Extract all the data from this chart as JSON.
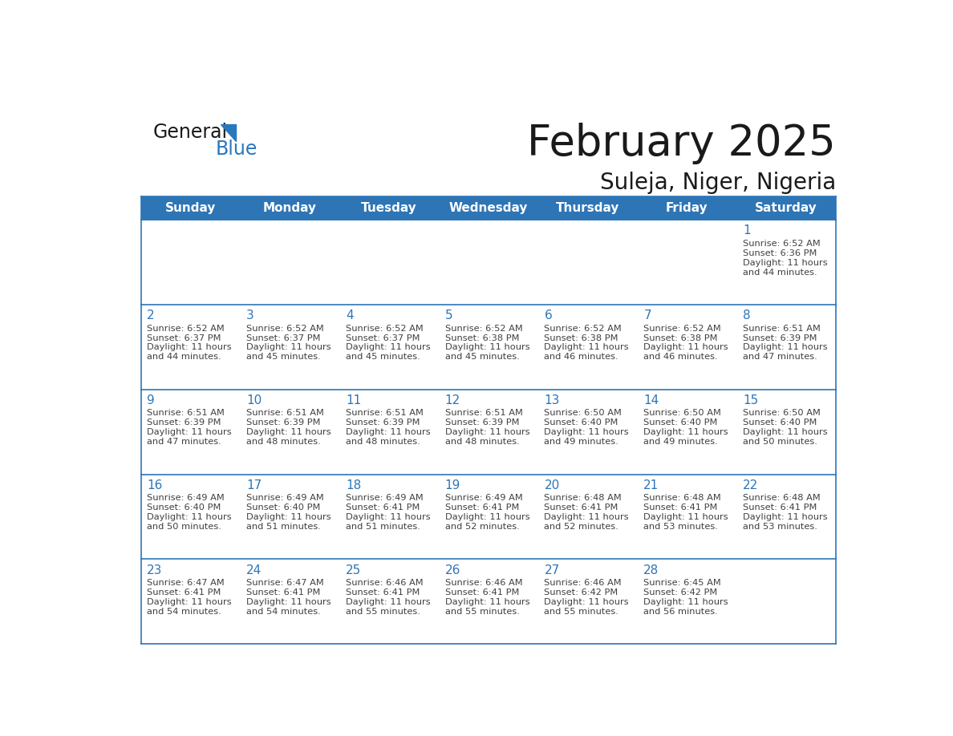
{
  "title": "February 2025",
  "subtitle": "Suleja, Niger, Nigeria",
  "header_bg": "#2E75B6",
  "header_text_color": "#FFFFFF",
  "cell_bg": "#FFFFFF",
  "border_color": "#2E75B6",
  "day_headers": [
    "Sunday",
    "Monday",
    "Tuesday",
    "Wednesday",
    "Thursday",
    "Friday",
    "Saturday"
  ],
  "title_color": "#1a1a1a",
  "subtitle_color": "#1a1a1a",
  "day_num_color": "#2E75B6",
  "text_color": "#404040",
  "logo_general_color": "#1a1a1a",
  "logo_blue_color": "#2878be",
  "days": [
    {
      "day": 1,
      "col": 6,
      "row": 0,
      "sunrise": "6:52 AM",
      "sunset": "6:36 PM",
      "daylight": "11 hours and 44 minutes."
    },
    {
      "day": 2,
      "col": 0,
      "row": 1,
      "sunrise": "6:52 AM",
      "sunset": "6:37 PM",
      "daylight": "11 hours and 44 minutes."
    },
    {
      "day": 3,
      "col": 1,
      "row": 1,
      "sunrise": "6:52 AM",
      "sunset": "6:37 PM",
      "daylight": "11 hours and 45 minutes."
    },
    {
      "day": 4,
      "col": 2,
      "row": 1,
      "sunrise": "6:52 AM",
      "sunset": "6:37 PM",
      "daylight": "11 hours and 45 minutes."
    },
    {
      "day": 5,
      "col": 3,
      "row": 1,
      "sunrise": "6:52 AM",
      "sunset": "6:38 PM",
      "daylight": "11 hours and 45 minutes."
    },
    {
      "day": 6,
      "col": 4,
      "row": 1,
      "sunrise": "6:52 AM",
      "sunset": "6:38 PM",
      "daylight": "11 hours and 46 minutes."
    },
    {
      "day": 7,
      "col": 5,
      "row": 1,
      "sunrise": "6:52 AM",
      "sunset": "6:38 PM",
      "daylight": "11 hours and 46 minutes."
    },
    {
      "day": 8,
      "col": 6,
      "row": 1,
      "sunrise": "6:51 AM",
      "sunset": "6:39 PM",
      "daylight": "11 hours and 47 minutes."
    },
    {
      "day": 9,
      "col": 0,
      "row": 2,
      "sunrise": "6:51 AM",
      "sunset": "6:39 PM",
      "daylight": "11 hours and 47 minutes."
    },
    {
      "day": 10,
      "col": 1,
      "row": 2,
      "sunrise": "6:51 AM",
      "sunset": "6:39 PM",
      "daylight": "11 hours and 48 minutes."
    },
    {
      "day": 11,
      "col": 2,
      "row": 2,
      "sunrise": "6:51 AM",
      "sunset": "6:39 PM",
      "daylight": "11 hours and 48 minutes."
    },
    {
      "day": 12,
      "col": 3,
      "row": 2,
      "sunrise": "6:51 AM",
      "sunset": "6:39 PM",
      "daylight": "11 hours and 48 minutes."
    },
    {
      "day": 13,
      "col": 4,
      "row": 2,
      "sunrise": "6:50 AM",
      "sunset": "6:40 PM",
      "daylight": "11 hours and 49 minutes."
    },
    {
      "day": 14,
      "col": 5,
      "row": 2,
      "sunrise": "6:50 AM",
      "sunset": "6:40 PM",
      "daylight": "11 hours and 49 minutes."
    },
    {
      "day": 15,
      "col": 6,
      "row": 2,
      "sunrise": "6:50 AM",
      "sunset": "6:40 PM",
      "daylight": "11 hours and 50 minutes."
    },
    {
      "day": 16,
      "col": 0,
      "row": 3,
      "sunrise": "6:49 AM",
      "sunset": "6:40 PM",
      "daylight": "11 hours and 50 minutes."
    },
    {
      "day": 17,
      "col": 1,
      "row": 3,
      "sunrise": "6:49 AM",
      "sunset": "6:40 PM",
      "daylight": "11 hours and 51 minutes."
    },
    {
      "day": 18,
      "col": 2,
      "row": 3,
      "sunrise": "6:49 AM",
      "sunset": "6:41 PM",
      "daylight": "11 hours and 51 minutes."
    },
    {
      "day": 19,
      "col": 3,
      "row": 3,
      "sunrise": "6:49 AM",
      "sunset": "6:41 PM",
      "daylight": "11 hours and 52 minutes."
    },
    {
      "day": 20,
      "col": 4,
      "row": 3,
      "sunrise": "6:48 AM",
      "sunset": "6:41 PM",
      "daylight": "11 hours and 52 minutes."
    },
    {
      "day": 21,
      "col": 5,
      "row": 3,
      "sunrise": "6:48 AM",
      "sunset": "6:41 PM",
      "daylight": "11 hours and 53 minutes."
    },
    {
      "day": 22,
      "col": 6,
      "row": 3,
      "sunrise": "6:48 AM",
      "sunset": "6:41 PM",
      "daylight": "11 hours and 53 minutes."
    },
    {
      "day": 23,
      "col": 0,
      "row": 4,
      "sunrise": "6:47 AM",
      "sunset": "6:41 PM",
      "daylight": "11 hours and 54 minutes."
    },
    {
      "day": 24,
      "col": 1,
      "row": 4,
      "sunrise": "6:47 AM",
      "sunset": "6:41 PM",
      "daylight": "11 hours and 54 minutes."
    },
    {
      "day": 25,
      "col": 2,
      "row": 4,
      "sunrise": "6:46 AM",
      "sunset": "6:41 PM",
      "daylight": "11 hours and 55 minutes."
    },
    {
      "day": 26,
      "col": 3,
      "row": 4,
      "sunrise": "6:46 AM",
      "sunset": "6:41 PM",
      "daylight": "11 hours and 55 minutes."
    },
    {
      "day": 27,
      "col": 4,
      "row": 4,
      "sunrise": "6:46 AM",
      "sunset": "6:42 PM",
      "daylight": "11 hours and 55 minutes."
    },
    {
      "day": 28,
      "col": 5,
      "row": 4,
      "sunrise": "6:45 AM",
      "sunset": "6:42 PM",
      "daylight": "11 hours and 56 minutes."
    }
  ]
}
